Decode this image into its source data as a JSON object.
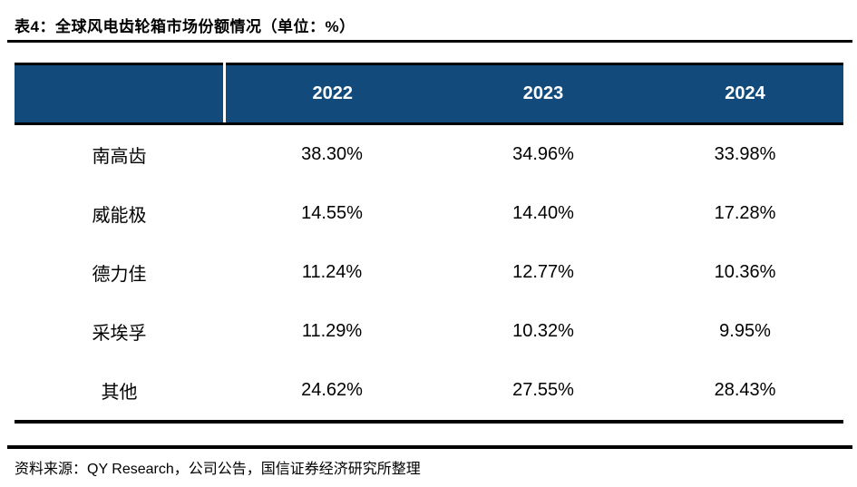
{
  "title": "表4：全球风电齿轮箱市场份额情况（单位：%）",
  "table": {
    "columns": [
      "2022",
      "2023",
      "2024"
    ],
    "rows": [
      {
        "name": "南高齿",
        "values": [
          "38.30%",
          "34.96%",
          "33.98%"
        ]
      },
      {
        "name": "威能极",
        "values": [
          "14.55%",
          "14.40%",
          "17.28%"
        ]
      },
      {
        "name": "德力佳",
        "values": [
          "11.24%",
          "12.77%",
          "10.36%"
        ]
      },
      {
        "name": "采埃孚",
        "values": [
          "11.29%",
          "10.32%",
          "9.95%"
        ]
      },
      {
        "name": "其他",
        "values": [
          "24.62%",
          "27.55%",
          "28.43%"
        ]
      }
    ]
  },
  "source": "资料来源：QY Research，公司公告，国信证券经济研究所整理",
  "colors": {
    "header_bg": "#114A7B",
    "header_text": "#FFFFFF",
    "body_text": "#000000",
    "rule": "#000000"
  },
  "chart_data": {
    "type": "table",
    "title": "表4：全球风电齿轮箱市场份额情况（单位：%）",
    "unit": "%",
    "categories": [
      "2022",
      "2023",
      "2024"
    ],
    "series": [
      {
        "name": "南高齿",
        "values": [
          38.3,
          34.96,
          33.98
        ]
      },
      {
        "name": "威能极",
        "values": [
          14.55,
          14.4,
          17.28
        ]
      },
      {
        "name": "德力佳",
        "values": [
          11.24,
          12.77,
          10.36
        ]
      },
      {
        "name": "采埃孚",
        "values": [
          11.29,
          10.32,
          9.95
        ]
      },
      {
        "name": "其他",
        "values": [
          24.62,
          27.55,
          28.43
        ]
      }
    ],
    "source": "资料来源：QY Research，公司公告，国信证券经济研究所整理",
    "layout": {
      "grid": false,
      "legend": false,
      "header_band_color": "#114A7B"
    }
  }
}
